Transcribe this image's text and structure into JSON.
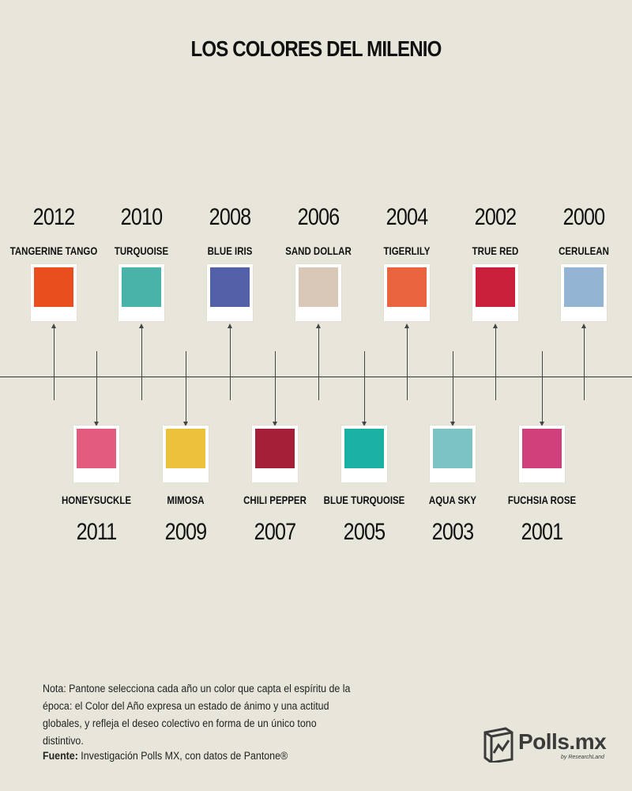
{
  "title": "LOS COLORES DEL MILENIO",
  "top_items": [
    {
      "year": "2012",
      "name": "TANGERINE TANGO",
      "color": "#e94e1f"
    },
    {
      "year": "2010",
      "name": "TURQUOISE",
      "color": "#49b3aa"
    },
    {
      "year": "2008",
      "name": "BLUE IRIS",
      "color": "#5260a8"
    },
    {
      "year": "2006",
      "name": "SAND DOLLAR",
      "color": "#d9c8b8"
    },
    {
      "year": "2004",
      "name": "TIGERLILY",
      "color": "#e9633f"
    },
    {
      "year": "2002",
      "name": "TRUE RED",
      "color": "#c91f3a"
    },
    {
      "year": "2000",
      "name": "CERULEAN",
      "color": "#94b4d4"
    }
  ],
  "bottom_items": [
    {
      "year": "2011",
      "name": "HONEYSUCKLE",
      "color": "#e35c80"
    },
    {
      "year": "2009",
      "name": "MIMOSA",
      "color": "#ecc23d"
    },
    {
      "year": "2007",
      "name": "CHILI PEPPER",
      "color": "#a41f37"
    },
    {
      "year": "2005",
      "name": "BLUE TURQUOISE",
      "color": "#1bb0a4"
    },
    {
      "year": "2003",
      "name": "AQUA SKY",
      "color": "#7cc4c4"
    },
    {
      "year": "2001",
      "name": "FUCHSIA ROSE",
      "color": "#d0407b"
    }
  ],
  "note": "Nota: Pantone selecciona cada año un color que capta el espíritu de la época: el Color del Año expresa un estado de ánimo y una actitud globales, y refleja el deseo colectivo en forma de un único tono distintivo.",
  "source_label": "Fuente:",
  "source_text": " Investigación Polls MX, con datos de Pantone®",
  "logo_text": "Polls.mx",
  "logo_sub": "by ResearchLand"
}
